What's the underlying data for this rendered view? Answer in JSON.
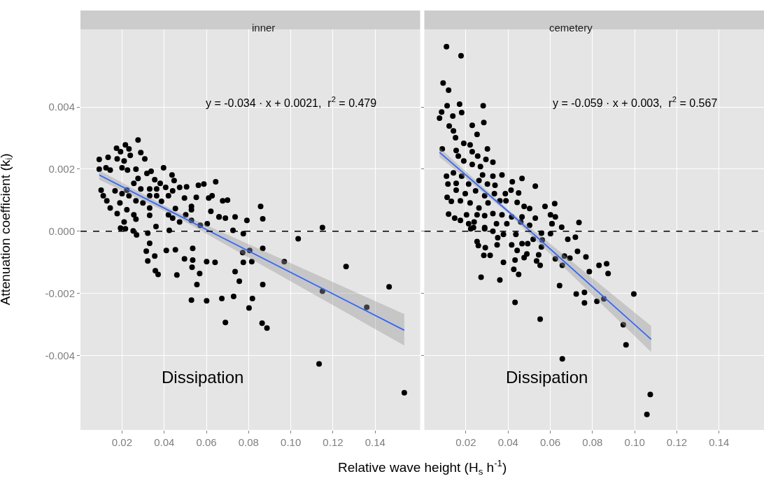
{
  "chart_data": [
    {
      "type": "scatter",
      "title": "inner",
      "ylabel": "Attenuation coefficient (k$_{i}$)",
      "xlabel": "Relative wave height (H$_{s}$ h$^{-1}$)",
      "xlim": [
        0.0003,
        0.1613
      ],
      "ylim": [
        -0.0064,
        0.0065
      ],
      "xticks": [
        0.02,
        0.04,
        0.06,
        0.08,
        {
          "value": 0.1,
          "label": "0.10"
        },
        0.12,
        0.14
      ],
      "yticks": [
        -0.004,
        -0.002,
        {
          "value": 0,
          "label": "0.000"
        },
        0.002,
        0.004
      ],
      "grid": true,
      "ref_lines": [
        {
          "axis": "y",
          "value": 0,
          "color": "#000000",
          "line_style": "dashed"
        }
      ],
      "annotations": [
        "y = -0.034 · x + 0.0021,  r$^{2}$ = 0.479",
        "Dissipation"
      ],
      "series": [
        {
          "color": "#000000",
          "marker": "circle",
          "x": [
            0.1538,
            0.1134,
            0.1466,
            0.136,
            0.1262,
            0.115,
            0.115,
            0.1035,
            0.0969,
            0.0887,
            0.0864,
            0.0867,
            0.0867,
            0.0802,
            0.0818,
            0.0815,
            0.0775,
            0.0805,
            0.0772,
            0.0756,
            0.0736,
            0.0729,
            0.069,
            0.0673,
            0.0601,
            0.0529,
            0.0555,
            0.0568,
            0.0532,
            0.0535,
            0.0496,
            0.0535,
            0.0601,
            0.0641,
            0.046,
            0.0453,
            0.041,
            0.0371,
            0.0358,
            0.0355,
            0.0322,
            0.0315,
            0.0331,
            0.0322,
            0.0269,
            0.0775,
            0.0726,
            0.0867,
            0.0792,
            0.0736,
            0.069,
            0.066,
            0.0424,
            0.0361,
            0.0276,
            0.0289,
            0.0308,
            0.0216,
            0.0174,
            0.0092,
            0.0134,
            0.0397,
            0.0437,
            0.0338,
            0.0318,
            0.0355,
            0.0381,
            0.0447,
            0.0092,
            0.0124,
            0.0144,
            0.02,
            0.0226,
            0.0266,
            0.0177,
            0.021,
            0.0239,
            0.0193,
            0.0233,
            0.0276,
            0.0256,
            0.0101,
            0.0111,
            0.0128,
            0.0144,
            0.019,
            0.0167,
            0.02,
            0.0233,
            0.0266,
            0.0223,
            0.0256,
            0.0177,
            0.021,
            0.0193,
            0.0216,
            0.0253,
            0.0266,
            0.0223,
            0.0289,
            0.0299,
            0.0331,
            0.0364,
            0.0407,
            0.044,
            0.0473,
            0.0506,
            0.0562,
            0.0588,
            0.0644,
            0.0331,
            0.0364,
            0.042,
            0.0496,
            0.0552,
            0.0611,
            0.0627,
            0.0677,
            0.07,
            0.0331,
            0.0387,
            0.0453,
            0.042,
            0.0502,
            0.0529,
            0.0529,
            0.0621,
            0.066,
            0.0331,
            0.0473,
            0.044,
            0.0529,
            0.0571,
            0.0604,
            0.0857
          ],
          "values": [
            -0.0052,
            -0.00427,
            -0.00179,
            -0.00245,
            -0.00114,
            0.00012,
            -0.00193,
            -0.00024,
            -0.00098,
            -0.00312,
            -0.00296,
            -0.00172,
            -0.00055,
            -0.00247,
            -0.00217,
            -0.00098,
            -0.001,
            -0.00062,
            -0.00069,
            -0.00161,
            -0.0013,
            -0.0021,
            -0.00294,
            -0.00217,
            -0.00224,
            -0.00222,
            -0.00172,
            -0.00136,
            -0.00116,
            -0.00093,
            -0.00089,
            -0.00055,
            -0.00098,
            -0.001,
            -0.00141,
            -0.0006,
            -0.00062,
            -0.00139,
            -0.00127,
            -0.0008,
            -0.00096,
            -0.00064,
            -0.00039,
            -6e-05,
            -0.00012,
            -8e-05,
            3e-05,
            0.0004,
            0.00035,
            0.00046,
            0.00042,
            0.00046,
            3e-05,
            0.00015,
            0.00294,
            0.00253,
            0.00233,
            0.00278,
            0.00267,
            0.00231,
            0.00238,
            0.00204,
            0.00181,
            0.00193,
            0.00186,
            0.00166,
            0.00154,
            0.00163,
            0.002,
            0.00204,
            0.00197,
            0.00204,
            0.00197,
            0.002,
            0.00233,
            0.00226,
            0.00244,
            0.00256,
            0.00265,
            0.0017,
            0.00154,
            0.00132,
            0.00114,
            0.00098,
            0.00075,
            0.00091,
            0.0013,
            0.00121,
            0.00114,
            0.00098,
            0.00069,
            0.00053,
            0.00057,
            0.0003,
            0.0001,
            8e-05,
            1e-05,
            0.00039,
            0.00132,
            0.00136,
            0.00091,
            0.00136,
            0.00136,
            0.00141,
            0.0013,
            0.00141,
            0.00143,
            0.00148,
            0.00152,
            0.00159,
            0.00114,
            0.00114,
            0.00114,
            0.00107,
            0.00109,
            0.00107,
            0.00114,
            0.00098,
            0.001,
            0.00075,
            0.00096,
            0.00073,
            0.00053,
            0.00053,
            0.0008,
            0.00069,
            0.00064,
            0.00046,
            0.00051,
            0.0003,
            0.00042,
            0.00035,
            0.00019,
            0.00024,
            0.0008
          ]
        },
        {
          "type": "line",
          "color": "#3366ff",
          "x": [
            0.0092,
            0.045,
            0.1538
          ],
          "values": [
            0.00181,
            0.00057,
            -0.00319
          ],
          "lower": [
            0.00166,
            0.00049,
            -0.00368
          ],
          "upper": [
            0.00196,
            0.00065,
            -0.00267
          ]
        }
      ]
    },
    {
      "type": "scatter",
      "title": "cemetery",
      "tick_labels": "x",
      "xlim": [
        0.0003,
        0.1613
      ],
      "ylim": [
        -0.0064,
        0.0065
      ],
      "xticks": [
        0.02,
        0.04,
        0.06,
        0.08,
        {
          "value": 0.1,
          "label": "0.10"
        },
        0.12,
        0.14
      ],
      "yticks": [
        -0.004,
        -0.002,
        0,
        0.002,
        0.004
      ],
      "grid": true,
      "ref_lines": [
        {
          "axis": "y",
          "value": 0,
          "color": "#000000",
          "line_style": "dashed"
        }
      ],
      "annotations": [
        "y = -0.059 · x + 0.003,  r$^{2}$ = 0.567",
        "Dissipation"
      ],
      "series": [
        {
          "color": "#000000",
          "marker": "circle",
          "x": [
            0.1074,
            0.1058,
            0.0996,
            0.0959,
            0.0946,
            0.0854,
            0.0821,
            0.0762,
            0.0762,
            0.0723,
            0.0657,
            0.0552,
            0.0433,
            0.0644,
            0.0785,
            0.0831,
            0.0867,
            0.0874,
            0.0769,
            0.0729,
            0.0693,
            0.0667,
            0.0624,
            0.0657,
            0.0719,
            0.0683,
            0.0654,
            0.0736,
            0.0601,
            0.0608,
            0.0558,
            0.0545,
            0.0552,
            0.0535,
            0.0562,
            0.0558,
            0.0519,
            0.0489,
            0.0476,
            0.0493,
            0.0466,
            0.0443,
            0.0433,
            0.0427,
            0.045,
            0.0417,
            0.0378,
            0.0361,
            0.0348,
            0.0351,
            0.0378,
            0.0315,
            0.0285,
            0.0292,
            0.0272,
            0.0259,
            0.0253,
            0.0437,
            0.0328,
            0.0223,
            0.0239,
            0.0289,
            0.0108,
            0.0177,
            0.0092,
            0.0118,
            0.0282,
            0.017,
            0.0111,
            0.0085,
            0.018,
            0.0075,
            0.0138,
            0.0285,
            0.023,
            0.0121,
            0.0141,
            0.0253,
            0.0151,
            0.019,
            0.022,
            0.0088,
            0.0154,
            0.0302,
            0.023,
            0.0164,
            0.0256,
            0.019,
            0.0295,
            0.0328,
            0.023,
            0.0269,
            0.0108,
            0.0141,
            0.018,
            0.0371,
            0.0328,
            0.0279,
            0.0466,
            0.0115,
            0.0154,
            0.0213,
            0.0262,
            0.0302,
            0.0338,
            0.042,
            0.0529,
            0.0154,
            0.0197,
            0.0246,
            0.0289,
            0.0335,
            0.0387,
            0.0414,
            0.045,
            0.0111,
            0.0131,
            0.0174,
            0.022,
            0.0262,
            0.0305,
            0.0361,
            0.039,
            0.0443,
            0.0476,
            0.0502,
            0.0575,
            0.0621,
            0.0118,
            0.0147,
            0.0174,
            0.0203,
            0.0253,
            0.0289,
            0.0328,
            0.0371,
            0.0417,
            0.0466,
            0.0529,
            0.0601,
            0.0624,
            0.0213,
            0.0236,
            0.0289,
            0.0345,
            0.0394,
            0.046,
            0.0502,
            0.0608
          ],
          "values": [
            -0.00526,
            -0.0059,
            -0.00202,
            -0.00366,
            -0.00301,
            -0.00218,
            -0.00226,
            -0.00231,
            -0.00197,
            -0.00202,
            -0.00411,
            -0.00283,
            -0.00229,
            -0.00175,
            -0.0013,
            -0.0011,
            -0.00105,
            -0.00136,
            -0.00083,
            -0.00065,
            -0.00087,
            -0.0008,
            -0.00089,
            -0.0011,
            -0.00019,
            -0.00026,
            0.00013,
            0.00028,
            -8e-05,
            0.00024,
            -0.00051,
            -0.00076,
            -0.0011,
            -0.00096,
            -0.00028,
            -6e-05,
            -0.00026,
            -0.00073,
            -0.00085,
            -0.0004,
            -0.0004,
            -0.00062,
            -0.00093,
            -0.00123,
            -0.00139,
            -0.00044,
            -0.001,
            -0.00157,
            -0.00044,
            -0.00021,
            -0.0001,
            -0.00078,
            -0.00078,
            -0.00053,
            -0.00148,
            -0.00046,
            -0.00033,
            -0.0001,
            0,
            8e-05,
            0.0003,
            8e-05,
            0.00594,
            0.00565,
            0.00477,
            0.00454,
            0.00404,
            0.00409,
            0.00404,
            0.00384,
            0.00382,
            0.00364,
            0.00371,
            0.0035,
            0.00341,
            0.00339,
            0.00323,
            0.00312,
            0.00301,
            0.00283,
            0.00278,
            0.00265,
            0.0026,
            0.00265,
            0.00256,
            0.00242,
            0.00242,
            0.00226,
            0.00231,
            0.00222,
            0.00215,
            0.00208,
            0.00177,
            0.00188,
            0.00177,
            0.00181,
            0.00177,
            0.00181,
            0.0017,
            0.00152,
            0.00154,
            0.00152,
            0.00163,
            0.00152,
            0.00148,
            0.00159,
            0.00145,
            0.00132,
            0.00121,
            0.0013,
            0.00114,
            0.00121,
            0.00121,
            0.00132,
            0.00123,
            0.00109,
            0.00096,
            0.00098,
            0.00091,
            0.00075,
            0.00091,
            0.00098,
            0.00098,
            0.00093,
            0.0008,
            0.00073,
            0.0008,
            0.00089,
            0.00055,
            0.00042,
            0.00035,
            0.00053,
            0.00053,
            0.0005,
            0.00057,
            0.00053,
            0.00046,
            0.00046,
            0.00042,
            0.00053,
            0.00046,
            0.00024,
            0.00012,
            0.00012,
            0.00024,
            0.00024,
            0.0003,
            0.00019,
            0.00024
          ]
        },
        {
          "type": "line",
          "color": "#3366ff",
          "x": [
            0.0075,
            0.04,
            0.1078
          ],
          "values": [
            0.00254,
            0.00064,
            -0.00348
          ],
          "lower": [
            0.00239,
            0.00058,
            -0.00389
          ],
          "upper": [
            0.00269,
            0.0007,
            -0.00305
          ]
        }
      ]
    }
  ]
}
